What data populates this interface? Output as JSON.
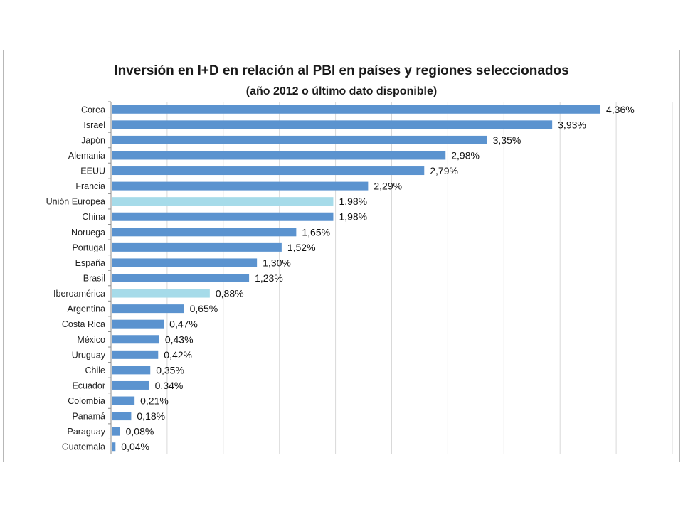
{
  "chart_data": {
    "type": "bar",
    "orientation": "horizontal",
    "title": "Inversión en I+D en relación al PBI en países y regiones seleccionados",
    "subtitle": "(año 2012 o último dato disponible)",
    "xlabel": "",
    "ylabel": "",
    "xlim": [
      0,
      5
    ],
    "grid": true,
    "legend": "none",
    "categories": [
      "Corea",
      "Israel",
      "Japón",
      "Alemania",
      "EEUU",
      "Francia",
      "Unión Europea",
      "China",
      "Noruega",
      "Portugal",
      "España",
      "Brasil",
      "Iberoamérica",
      "Argentina",
      "Costa Rica",
      "México",
      "Uruguay",
      "Chile",
      "Ecuador",
      "Colombia",
      "Panamá",
      "Paraguay",
      "Guatemala"
    ],
    "values": [
      4.36,
      3.93,
      3.35,
      2.98,
      2.79,
      2.29,
      1.98,
      1.98,
      1.65,
      1.52,
      1.3,
      1.23,
      0.88,
      0.65,
      0.47,
      0.43,
      0.42,
      0.35,
      0.34,
      0.21,
      0.18,
      0.08,
      0.04
    ],
    "value_labels": [
      "4,36%",
      "3,93%",
      "3,35%",
      "2,98%",
      "2,79%",
      "2,29%",
      "1,98%",
      "1,98%",
      "1,65%",
      "1,52%",
      "1,30%",
      "1,23%",
      "0,88%",
      "0,65%",
      "0,47%",
      "0,43%",
      "0,42%",
      "0,35%",
      "0,34%",
      "0,21%",
      "0,18%",
      "0,08%",
      "0,04%"
    ],
    "highlighted": [
      "Unión Europea",
      "Iberoamérica"
    ],
    "colors": {
      "bar": "#5b93cf",
      "highlight": "#a6dbe9",
      "grid": "#d9d9d9",
      "axis": "#8c8c8c"
    }
  }
}
